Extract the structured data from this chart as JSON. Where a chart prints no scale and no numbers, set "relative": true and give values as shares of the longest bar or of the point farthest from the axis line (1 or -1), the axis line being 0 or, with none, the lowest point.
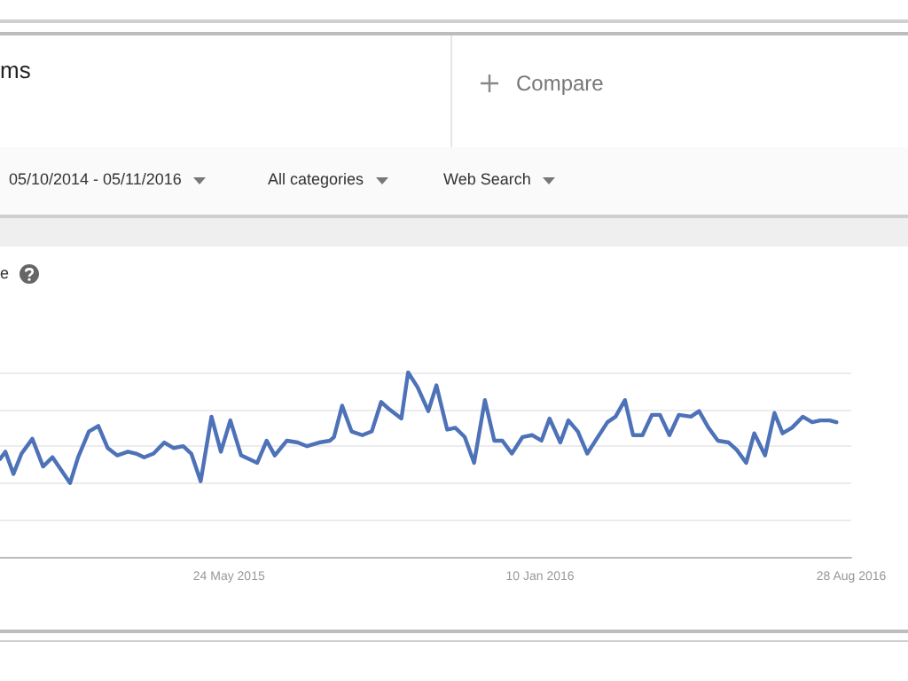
{
  "chart_data": {
    "type": "line",
    "relative": true,
    "grid": "y",
    "marker": "none",
    "line_style": "solid",
    "annotations": [
      "ms",
      "Compare",
      "05/10/2014 - 05/11/2016",
      "All categories",
      "Web Search",
      "e"
    ],
    "xlim": [
      "2014-12-05",
      "2016-08-28"
    ],
    "xticks": [
      {
        "value": "2015-05-24",
        "label": "24 May 2015"
      },
      {
        "value": "2016-01-10",
        "label": "10 Jan 2016"
      },
      {
        "value": "2016-08-28",
        "label": "28 Aug 2016"
      }
    ],
    "series": [
      {
        "color": "#4e72b8",
        "x": [
          "2014-12-05",
          "2014-12-09",
          "2014-12-15",
          "2014-12-21",
          "2014-12-29",
          "2015-01-06",
          "2015-01-13",
          "2015-01-26",
          "2015-02-01",
          "2015-02-09",
          "2015-02-16",
          "2015-02-23",
          "2015-03-02",
          "2015-03-10",
          "2015-03-16",
          "2015-03-22",
          "2015-03-29",
          "2015-04-06",
          "2015-04-13",
          "2015-04-20",
          "2015-04-26",
          "2015-05-03",
          "2015-05-11",
          "2015-05-18",
          "2015-05-25",
          "2015-06-02",
          "2015-06-08",
          "2015-06-14",
          "2015-06-21",
          "2015-06-27",
          "2015-07-06",
          "2015-07-14",
          "2015-07-21",
          "2015-07-30",
          "2015-08-07",
          "2015-08-10",
          "2015-08-16",
          "2015-08-23",
          "2015-08-31",
          "2015-09-07",
          "2015-09-14",
          "2015-09-20",
          "2015-09-29",
          "2015-10-04",
          "2015-10-11",
          "2015-10-19",
          "2015-10-25",
          "2015-11-02",
          "2015-11-08",
          "2015-11-15",
          "2015-11-22",
          "2015-11-30",
          "2015-12-07",
          "2015-12-13",
          "2015-12-20",
          "2015-12-28",
          "2016-01-04",
          "2016-01-11",
          "2016-01-17",
          "2016-01-25",
          "2016-01-31",
          "2016-02-07",
          "2016-02-14",
          "2016-02-21",
          "2016-02-29",
          "2016-03-06",
          "2016-03-13",
          "2016-03-19",
          "2016-03-26",
          "2016-04-02",
          "2016-04-08",
          "2016-04-15",
          "2016-04-22",
          "2016-05-01",
          "2016-05-07",
          "2016-05-14",
          "2016-05-21",
          "2016-05-29",
          "2016-06-04",
          "2016-06-11",
          "2016-06-17",
          "2016-06-25",
          "2016-07-02",
          "2016-07-08",
          "2016-07-15",
          "2016-07-23",
          "2016-07-30",
          "2016-08-05",
          "2016-08-12",
          "2016-08-17"
        ],
        "values": [
          0.53,
          0.57,
          0.45,
          0.56,
          0.64,
          0.49,
          0.54,
          0.4,
          0.54,
          0.68,
          0.71,
          0.59,
          0.55,
          0.57,
          0.56,
          0.54,
          0.56,
          0.62,
          0.59,
          0.6,
          0.56,
          0.41,
          0.76,
          0.57,
          0.74,
          0.55,
          0.53,
          0.51,
          0.63,
          0.55,
          0.63,
          0.62,
          0.6,
          0.62,
          0.63,
          0.65,
          0.82,
          0.68,
          0.66,
          0.68,
          0.84,
          0.8,
          0.75,
          1,
          0.92,
          0.79,
          0.93,
          0.69,
          0.7,
          0.65,
          0.51,
          0.85,
          0.63,
          0.63,
          0.56,
          0.65,
          0.66,
          0.63,
          0.75,
          0.62,
          0.74,
          0.68,
          0.56,
          0.64,
          0.73,
          0.76,
          0.85,
          0.66,
          0.66,
          0.77,
          0.77,
          0.66,
          0.77,
          0.76,
          0.79,
          0.7,
          0.63,
          0.62,
          0.58,
          0.51,
          0.67,
          0.55,
          0.78,
          0.67,
          0.7,
          0.76,
          0.73,
          0.74,
          0.74,
          0.73
        ]
      }
    ]
  }
}
